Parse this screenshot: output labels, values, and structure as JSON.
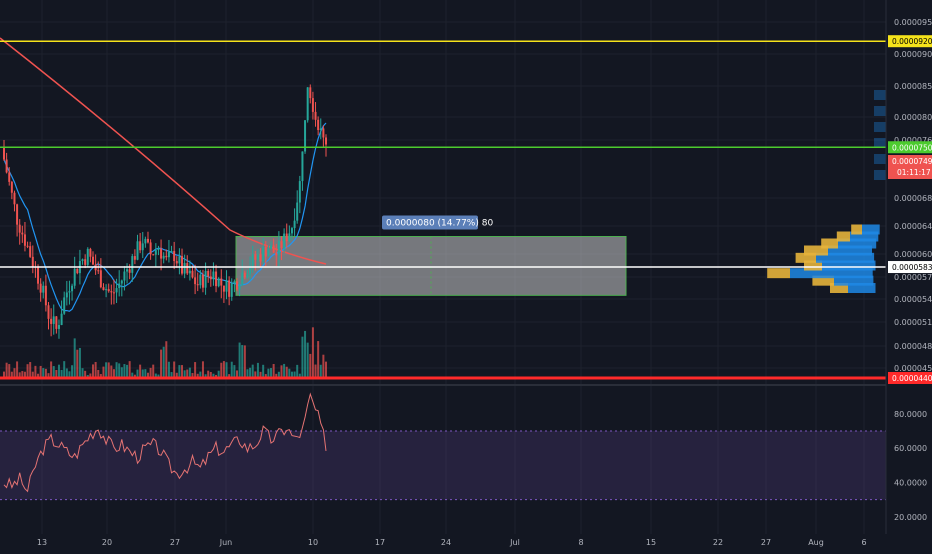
{
  "chart_data": [
    {
      "type": "candlestick",
      "title": "",
      "x_tick_labels": [
        "13",
        "20",
        "27",
        "Jun",
        "10",
        "17",
        "24",
        "Jul",
        "8",
        "15",
        "22",
        "27",
        "Aug",
        "6"
      ],
      "y_tick_labels": [
        "0.0000950",
        "0.0000900",
        "0.0000850",
        "0.0000800",
        "0.0000760",
        "0.0000680",
        "0.0000640",
        "0.0000600",
        "0.0000570",
        "0.0000540",
        "0.0000510",
        "0.0000480",
        "0.0000450"
      ],
      "ylim": [
        4.4e-05,
        9.7e-05
      ],
      "horizontal_lines": [
        {
          "label": "0.0000920",
          "value": 9.2e-05,
          "color": "#f5e31b"
        },
        {
          "label": "0.0000750",
          "value": 7.5e-05,
          "color": "#4ccb2e"
        },
        {
          "label": "0.0000583",
          "value": 5.83e-05,
          "color": "#ffffff"
        },
        {
          "label": "0.0000440",
          "value": 4.4e-05,
          "color": "#ff2a2a"
        }
      ],
      "last_price": {
        "label": "0.0000749",
        "countdown": "01:11:17",
        "value": 7.49e-05,
        "color": "#ef5350"
      },
      "measure_box": {
        "label": "0.0000080 (14.77%) 80",
        "y_from": 5.45e-05,
        "y_to": 6.25e-05
      },
      "close_path": [
        7.5e-05,
        7e-05,
        6.5e-05,
        6.2e-05,
        5.9e-05,
        5.6e-05,
        5.2e-05,
        5e-05,
        5.4e-05,
        5.7e-05,
        5.9e-05,
        6e-05,
        5.8e-05,
        5.6e-05,
        5.45e-05,
        5.6e-05,
        5.8e-05,
        6e-05,
        6.2e-05,
        6e-05,
        6.1e-05,
        5.9e-05,
        6e-05,
        5.8e-05,
        5.7e-05,
        5.6e-05,
        5.7e-05,
        5.75e-05,
        5.6e-05,
        5.55e-05,
        5.65e-05,
        5.8e-05,
        5.9e-05,
        6e-05,
        6.1e-05,
        6e-05,
        6.2e-05,
        6.4e-05,
        7e-05,
        8.6e-05,
        8e-05,
        7.6e-05
      ],
      "volume_profile": [
        5.55e-05,
        5.65e-05,
        5.75e-05,
        5.85e-05,
        5.95e-05,
        6.05e-05,
        6.15e-05,
        6.25e-05,
        6.35e-05
      ],
      "colors": {
        "up": "#26a69a",
        "down": "#ef5350",
        "ma_slow": "#ef5350",
        "ma_fast": "#2196f3",
        "volume_up": "#26a69a",
        "volume_down": "#ef5350"
      }
    },
    {
      "type": "line",
      "title": "",
      "name": "",
      "y_tick_labels": [
        "80.0000",
        "60.0000",
        "40.0000",
        "20.0000"
      ],
      "ylim": [
        10,
        95
      ],
      "band": [
        30,
        70
      ],
      "values": [
        40,
        38,
        42,
        35,
        50,
        60,
        65,
        62,
        58,
        55,
        62,
        68,
        72,
        65,
        60,
        62,
        58,
        55,
        60,
        62,
        58,
        50,
        45,
        48,
        52,
        48,
        55,
        60,
        58,
        62,
        65,
        60,
        62,
        70,
        65,
        68,
        72,
        65,
        70,
        90,
        78,
        62
      ],
      "colors": {
        "line": "#e57373",
        "band": "#7e57c2"
      }
    }
  ]
}
